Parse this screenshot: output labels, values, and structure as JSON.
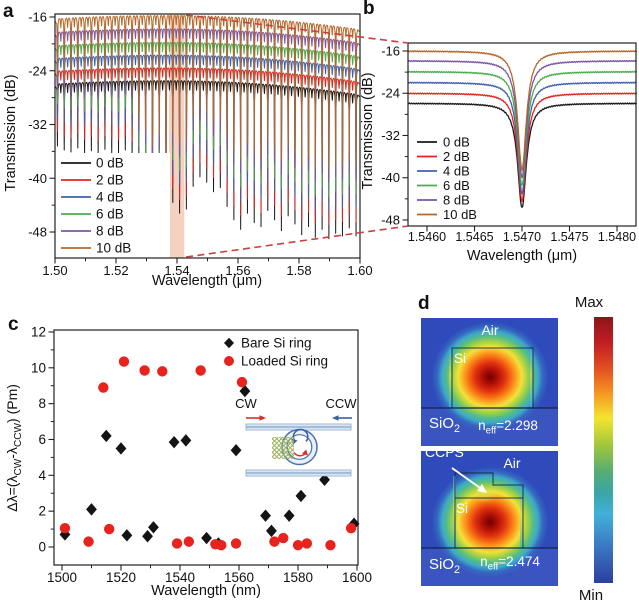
{
  "panels": {
    "a": {
      "label": "a",
      "xlabel": "Wavelength (μm)",
      "ylabel": "Transmission (dB)"
    },
    "b": {
      "label": "b",
      "xlabel": "Wavelength (μm)",
      "ylabel": "Transmission (dB)"
    },
    "c": {
      "label": "c",
      "xlabel": "Wavelength (nm)"
    },
    "d": {
      "label": "d",
      "colorbar": {
        "max": "Max",
        "min": "Min"
      },
      "mode1": {
        "air": "Air",
        "si": "Si",
        "sio2_parts": [
          "SiO",
          "2"
        ],
        "neff_parts": [
          "n",
          "eff",
          "=2.298"
        ]
      },
      "mode2": {
        "ccps": "CCPS",
        "air": "Air",
        "si": "Si",
        "sio2_parts": [
          "SiO",
          "2"
        ],
        "neff_parts": [
          "n",
          "eff",
          "=2.474"
        ]
      }
    }
  },
  "inset": {
    "cw": "CW",
    "ccw": "CCW"
  },
  "colors": {
    "frame": "#222222",
    "dash_line": "#c94040",
    "band": "#e07a4e",
    "inset_blue": "#4a72b0",
    "inset_light": "#cfe2f2",
    "hatch_green": "#9cb25c",
    "arrow_red": "#d93025",
    "arrow_blue": "#3a5fa8",
    "mode_bg": "#2f4bbb",
    "jet_bar": [
      "#8c1518 0%",
      "#c31f24 10%",
      "#e4531f 20%",
      "#f59122 28%",
      "#f3e52e 38%",
      "#a3c73b 48%",
      "#57ad72 58%",
      "#3aa5a5 66%",
      "#41b1da 74%",
      "#3b79c4 86%",
      "#2c3f9d 100%"
    ]
  },
  "chart_data": [
    {
      "id": "a",
      "type": "line",
      "xlabel": "Wavelength (μm)",
      "ylabel": "Transmission (dB)",
      "xlim": [
        1.5,
        1.6
      ],
      "ylim": [
        -51.9,
        -15.5
      ],
      "xticks": [
        1.5,
        1.52,
        1.54,
        1.56,
        1.58,
        1.6
      ],
      "xtick_labels": [
        "1.50",
        "1.52",
        "1.54",
        "1.56",
        "1.58",
        "1.60"
      ],
      "xminor": [
        1.51,
        1.53,
        1.55,
        1.57,
        1.59
      ],
      "yticks": [
        -16,
        -24,
        -32,
        -40,
        -48
      ],
      "ytick_labels": [
        "-16",
        "-24",
        "-32",
        "-40",
        "-48"
      ],
      "yminor": [
        -20,
        -28,
        -36,
        -44
      ],
      "legend": [
        {
          "label": "0 dB",
          "color": "#1a1a1a"
        },
        {
          "label": "2 dB",
          "color": "#e3241f"
        },
        {
          "label": "4 dB",
          "color": "#3f62ae"
        },
        {
          "label": "6 dB",
          "color": "#4aad4a"
        },
        {
          "label": "8 dB",
          "color": "#7b57a5"
        },
        {
          "label": "10 dB",
          "color": "#b6672a"
        }
      ],
      "baselines": [
        -25.8,
        -23.9,
        -22.0,
        -20.1,
        -18.1,
        -16.1
      ],
      "resonance_start": 1.5008,
      "resonance_spacing": 0.002225,
      "dip_depths_0dB": [
        -35.2,
        -35.8,
        -36.1,
        -35.5,
        -36.3,
        -35.9,
        -36.5,
        -35.7,
        -36.2,
        -36.4,
        -35.8,
        -36.6,
        -41.5,
        -43.2,
        -45.6,
        -44.0,
        -46.6,
        -43.6,
        -45.2,
        -44.6,
        -41.2,
        -39.8,
        -40.6,
        -42.0,
        -41.4,
        -44.2,
        -46.2,
        -47.6,
        -45.2,
        -46.6,
        -47.2,
        -44.8,
        -46.2,
        -47.8,
        -45.6,
        -46.8,
        -48.4,
        -47.2,
        -48.8,
        -47.6,
        -49.0,
        -48.2,
        -48.6,
        -47.4,
        -48.6
      ],
      "trace_depth_offset": 2.1,
      "mid_notch_depth": 1.05,
      "highlight_band": [
        1.5374,
        1.5424
      ]
    },
    {
      "id": "b",
      "type": "line",
      "xlabel": "Wavelength (μm)",
      "ylabel": "Transmission (dB)",
      "xlim": [
        1.5458,
        1.5482
      ],
      "ylim": [
        -49.2,
        -14.5
      ],
      "xticks": [
        1.546,
        1.5465,
        1.547,
        1.5475,
        1.548
      ],
      "xtick_labels": [
        "1.5460",
        "1.5465",
        "1.5470",
        "1.5475",
        "1.5480"
      ],
      "yticks": [
        -16,
        -24,
        -32,
        -40,
        -48
      ],
      "ytick_labels": [
        "-16",
        "-24",
        "-32",
        "-40",
        "-48"
      ],
      "yminor": [
        -20,
        -28,
        -36,
        -44
      ],
      "legend": [
        {
          "label": "0 dB",
          "color": "#1a1a1a"
        },
        {
          "label": "2 dB",
          "color": "#e3241f"
        },
        {
          "label": "4 dB",
          "color": "#3f62ae"
        },
        {
          "label": "6 dB",
          "color": "#4aad4a"
        },
        {
          "label": "8 dB",
          "color": "#7b57a5"
        },
        {
          "label": "10 dB",
          "color": "#b6672a"
        }
      ],
      "series": [
        {
          "name": "0 dB",
          "color": "#1a1a1a",
          "baseline": -25.9,
          "min": -45.7
        },
        {
          "name": "2 dB",
          "color": "#e3241f",
          "baseline": -24.0,
          "min": -44.4
        },
        {
          "name": "4 dB",
          "color": "#3f62ae",
          "baseline": -21.95,
          "min": -43.0
        },
        {
          "name": "6 dB",
          "color": "#4aad4a",
          "baseline": -19.9,
          "min": -41.5
        },
        {
          "name": "8 dB",
          "color": "#7b57a5",
          "baseline": -17.85,
          "min": -40.0
        },
        {
          "name": "10 dB",
          "color": "#b6672a",
          "baseline": -16.0,
          "min": -38.5
        }
      ],
      "dip_center": 1.547,
      "dip_hwhm": 5.5e-05
    },
    {
      "id": "c",
      "type": "scatter",
      "xlabel": "Wavelength (nm)",
      "ylabel_parts": [
        "Δλ=(λ",
        "CW",
        "-λ",
        "CCW",
        ") (Pm)"
      ],
      "xlim": [
        1497,
        1600.5
      ],
      "ylim": [
        -1,
        12.1
      ],
      "xticks": [
        1500,
        1520,
        1540,
        1560,
        1580,
        1600
      ],
      "xtick_labels": [
        "1500",
        "1520",
        "1540",
        "1560",
        "1580",
        "1600"
      ],
      "xminor": [
        1510,
        1530,
        1550,
        1570,
        1590
      ],
      "yticks": [
        0,
        2,
        4,
        6,
        8,
        10,
        12
      ],
      "ytick_labels": [
        "0",
        "2",
        "4",
        "6",
        "8",
        "10",
        "12"
      ],
      "yminor": [
        1,
        3,
        5,
        7,
        9,
        11
      ],
      "series": [
        {
          "name": "Bare Si ring",
          "marker": "diamond",
          "color": "#141414",
          "points": [
            [
              1501,
              0.7
            ],
            [
              1510,
              2.1
            ],
            [
              1515,
              6.2
            ],
            [
              1520,
              5.5
            ],
            [
              1522,
              0.65
            ],
            [
              1529,
              0.6
            ],
            [
              1531,
              1.1
            ],
            [
              1538,
              5.85
            ],
            [
              1542,
              5.95
            ],
            [
              1549,
              0.5
            ],
            [
              1553,
              0.2
            ],
            [
              1559,
              5.4
            ],
            [
              1562,
              8.7
            ],
            [
              1569,
              1.75
            ],
            [
              1571,
              0.9
            ],
            [
              1577,
              1.75
            ],
            [
              1581,
              2.85
            ],
            [
              1589,
              3.75
            ],
            [
              1599,
              1.3
            ]
          ]
        },
        {
          "name": "Loaded Si ring",
          "marker": "circle",
          "color": "#e8231e",
          "points": [
            [
              1501,
              1.05
            ],
            [
              1509,
              0.3
            ],
            [
              1514,
              8.9
            ],
            [
              1516,
              1.0
            ],
            [
              1521,
              10.35
            ],
            [
              1528,
              9.85
            ],
            [
              1534,
              9.8
            ],
            [
              1539,
              0.2
            ],
            [
              1543,
              0.3
            ],
            [
              1547,
              9.85
            ],
            [
              1552,
              0.15
            ],
            [
              1554,
              0.1
            ],
            [
              1559,
              0.2
            ],
            [
              1561,
              9.2
            ],
            [
              1572,
              0.3
            ],
            [
              1575,
              0.5
            ],
            [
              1580,
              0.1
            ],
            [
              1583,
              0.2
            ],
            [
              1591,
              0.1
            ],
            [
              1598,
              1.05
            ]
          ]
        }
      ]
    }
  ]
}
